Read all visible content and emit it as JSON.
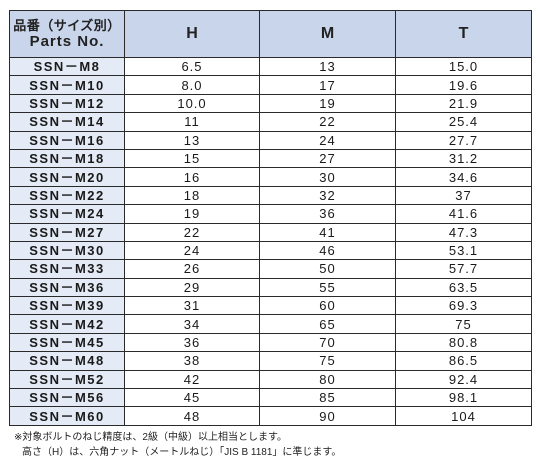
{
  "table": {
    "header_part_jp": "品番（サイズ別）",
    "header_part_en": "Parts  No.",
    "header_h": "H",
    "header_m": "M",
    "header_t": "T",
    "rows": [
      {
        "part": "SSN－M8",
        "h": "6.5",
        "m": "13",
        "t": "15.0"
      },
      {
        "part": "SSN－M10",
        "h": "8.0",
        "m": "17",
        "t": "19.6"
      },
      {
        "part": "SSN－M12",
        "h": "10.0",
        "m": "19",
        "t": "21.9"
      },
      {
        "part": "SSN－M14",
        "h": "11",
        "m": "22",
        "t": "25.4"
      },
      {
        "part": "SSN－M16",
        "h": "13",
        "m": "24",
        "t": "27.7"
      },
      {
        "part": "SSN－M18",
        "h": "15",
        "m": "27",
        "t": "31.2"
      },
      {
        "part": "SSN－M20",
        "h": "16",
        "m": "30",
        "t": "34.6"
      },
      {
        "part": "SSN－M22",
        "h": "18",
        "m": "32",
        "t": "37"
      },
      {
        "part": "SSN－M24",
        "h": "19",
        "m": "36",
        "t": "41.6"
      },
      {
        "part": "SSN－M27",
        "h": "22",
        "m": "41",
        "t": "47.3"
      },
      {
        "part": "SSN－M30",
        "h": "24",
        "m": "46",
        "t": "53.1"
      },
      {
        "part": "SSN－M33",
        "h": "26",
        "m": "50",
        "t": "57.7"
      },
      {
        "part": "SSN－M36",
        "h": "29",
        "m": "55",
        "t": "63.5"
      },
      {
        "part": "SSN－M39",
        "h": "31",
        "m": "60",
        "t": "69.3"
      },
      {
        "part": "SSN－M42",
        "h": "34",
        "m": "65",
        "t": "75"
      },
      {
        "part": "SSN－M45",
        "h": "36",
        "m": "70",
        "t": "80.8"
      },
      {
        "part": "SSN－M48",
        "h": "38",
        "m": "75",
        "t": "86.5"
      },
      {
        "part": "SSN－M52",
        "h": "42",
        "m": "80",
        "t": "92.4"
      },
      {
        "part": "SSN－M56",
        "h": "45",
        "m": "85",
        "t": "98.1"
      },
      {
        "part": "SSN－M60",
        "h": "48",
        "m": "90",
        "t": "104"
      }
    ]
  },
  "notes": {
    "line1": "※対象ボルトのねじ精度は、2級（中級）以上相当とします。",
    "line2": "高さ（H）は、六角ナット（メートルねじ）「JIS B 1181」に準じます。"
  }
}
